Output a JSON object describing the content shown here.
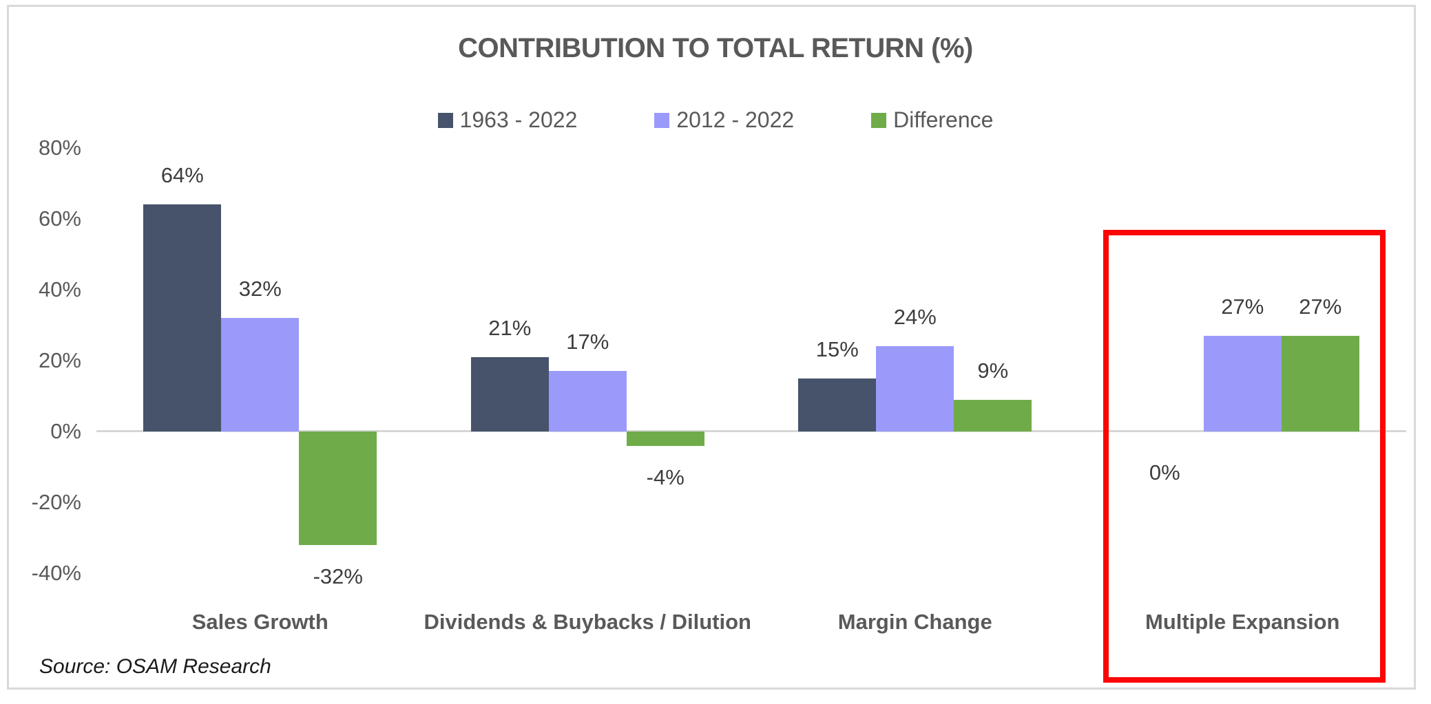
{
  "title": "CONTRIBUTION TO TOTAL RETURN (%)",
  "source_note": "Source: OSAM Research",
  "colors": {
    "series_dark_blue": "#46536A",
    "series_purple": "#9B9AFB",
    "series_green": "#6FAC49",
    "text_gray": "#595959",
    "data_label_gray": "#3D3D3D",
    "axis_line_gray": "#D6D6D6",
    "card_border_gray": "#D9D9D9",
    "highlight_red": "#FB0505"
  },
  "chart_data": {
    "type": "bar",
    "title": "CONTRIBUTION TO TOTAL RETURN (%)",
    "categories": [
      "Sales Growth",
      "Dividends & Buybacks / Dilution",
      "Margin Change",
      "Multiple Expansion"
    ],
    "series": [
      {
        "name": "1963 - 2022",
        "color": "#46536A",
        "values": [
          64,
          21,
          15,
          0
        ]
      },
      {
        "name": "2012 - 2022",
        "color": "#9B9AFB",
        "values": [
          32,
          17,
          24,
          27
        ]
      },
      {
        "name": "Difference",
        "color": "#6FAC49",
        "values": [
          -32,
          -4,
          9,
          27
        ]
      }
    ],
    "data_labels": [
      [
        "64%",
        "21%",
        "15%",
        "0%"
      ],
      [
        "32%",
        "17%",
        "24%",
        "27%"
      ],
      [
        "-32%",
        "-4%",
        "9%",
        "27%"
      ]
    ],
    "y_ticks": [
      "80%",
      "60%",
      "40%",
      "20%",
      "0%",
      "-20%",
      "-40%"
    ],
    "y_tick_values": [
      80,
      60,
      40,
      20,
      0,
      -20,
      -40
    ],
    "ylim": [
      -40,
      80
    ],
    "unit": "%",
    "grid": false,
    "legend_position": "top",
    "annotation": "red rectangle highlighting the Multiple Expansion category group"
  }
}
